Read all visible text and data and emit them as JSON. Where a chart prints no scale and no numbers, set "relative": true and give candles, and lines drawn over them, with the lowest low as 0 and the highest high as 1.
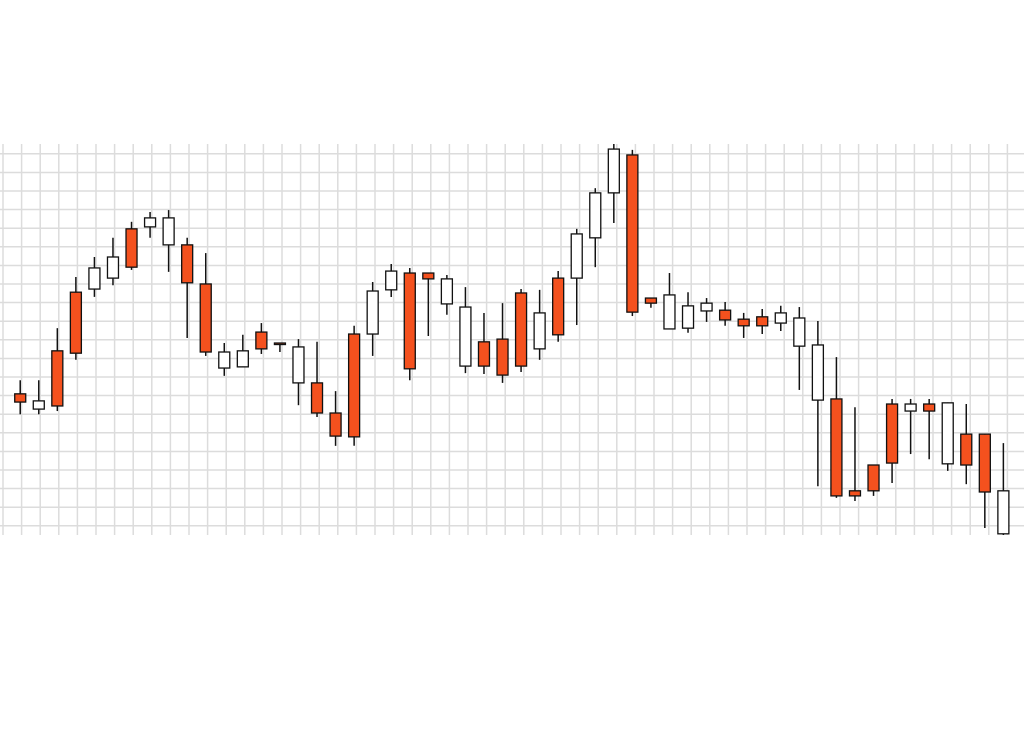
{
  "chart_data": {
    "type": "candlestick",
    "relative": true,
    "grid": true,
    "categories": [
      null,
      null,
      null,
      null,
      null,
      null,
      null,
      null,
      null,
      null,
      null,
      null,
      null,
      null,
      null,
      null,
      null,
      null,
      null,
      null,
      null,
      null,
      null,
      null,
      null,
      null,
      null,
      null,
      null,
      null,
      null,
      null,
      null,
      null,
      null,
      null,
      null,
      null,
      null,
      null,
      null,
      null,
      null,
      null,
      null,
      null,
      null,
      null,
      null,
      null,
      null,
      null,
      null,
      null
    ],
    "ohlc": [
      [
        0.361,
        0.396,
        0.309,
        0.34
      ],
      [
        0.322,
        0.396,
        0.309,
        0.343
      ],
      [
        0.471,
        0.529,
        0.317,
        0.33
      ],
      [
        0.621,
        0.66,
        0.448,
        0.465
      ],
      [
        0.629,
        0.711,
        0.609,
        0.683
      ],
      [
        0.657,
        0.76,
        0.639,
        0.711
      ],
      [
        0.783,
        0.801,
        0.678,
        0.685
      ],
      [
        0.788,
        0.826,
        0.76,
        0.811
      ],
      [
        0.742,
        0.831,
        0.673,
        0.811
      ],
      [
        0.742,
        0.76,
        0.504,
        0.645
      ],
      [
        0.642,
        0.721,
        0.458,
        0.468
      ],
      [
        0.427,
        0.491,
        0.407,
        0.468
      ],
      [
        0.43,
        0.512,
        0.43,
        0.471
      ],
      [
        0.519,
        0.542,
        0.463,
        0.476
      ],
      [
        0.491,
        0.491,
        0.468,
        0.488
      ],
      [
        0.389,
        0.501,
        0.332,
        0.481
      ],
      [
        0.389,
        0.494,
        0.302,
        0.312
      ],
      [
        0.312,
        0.368,
        0.228,
        0.253
      ],
      [
        0.514,
        0.535,
        0.228,
        0.251
      ],
      [
        0.514,
        0.647,
        0.458,
        0.624
      ],
      [
        0.627,
        0.693,
        0.609,
        0.675
      ],
      [
        0.67,
        0.683,
        0.396,
        0.425
      ],
      [
        0.67,
        0.67,
        0.509,
        0.655
      ],
      [
        0.591,
        0.665,
        0.563,
        0.655
      ],
      [
        0.432,
        0.634,
        0.414,
        0.583
      ],
      [
        0.494,
        0.568,
        0.412,
        0.432
      ],
      [
        0.501,
        0.593,
        0.389,
        0.409
      ],
      [
        0.619,
        0.629,
        0.417,
        0.432
      ],
      [
        0.476,
        0.627,
        0.448,
        0.568
      ],
      [
        0.657,
        0.675,
        0.494,
        0.512
      ],
      [
        0.657,
        0.783,
        0.537,
        0.77
      ],
      [
        0.76,
        0.887,
        0.685,
        0.875
      ],
      [
        0.875,
        1,
        0.798,
        0.987
      ],
      [
        0.972,
        0.985,
        0.56,
        0.57
      ],
      [
        0.606,
        0.606,
        0.581,
        0.593
      ],
      [
        0.527,
        0.67,
        0.527,
        0.614
      ],
      [
        0.529,
        0.621,
        0.517,
        0.586
      ],
      [
        0.573,
        0.606,
        0.545,
        0.593
      ],
      [
        0.575,
        0.596,
        0.535,
        0.55
      ],
      [
        0.552,
        0.568,
        0.504,
        0.535
      ],
      [
        0.558,
        0.578,
        0.514,
        0.535
      ],
      [
        0.542,
        0.586,
        0.522,
        0.568
      ],
      [
        0.483,
        0.583,
        0.371,
        0.555
      ],
      [
        0.345,
        0.547,
        0.125,
        0.486
      ],
      [
        0.348,
        0.455,
        0.095,
        0.1
      ],
      [
        0.113,
        0.327,
        0.087,
        0.1
      ],
      [
        0.179,
        0.179,
        0.1,
        0.113
      ],
      [
        0.335,
        0.348,
        0.133,
        0.184
      ],
      [
        0.317,
        0.348,
        0.207,
        0.335
      ],
      [
        0.335,
        0.348,
        0.194,
        0.317
      ],
      [
        0.182,
        0.338,
        0.164,
        0.338
      ],
      [
        0.258,
        0.335,
        0.13,
        0.179
      ],
      [
        0.258,
        0.258,
        0.018,
        0.11
      ],
      [
        0.003,
        0.235,
        0,
        0.113
      ]
    ],
    "colors": [
      "#f4511e",
      "#ffffff",
      "#f4511e",
      "#f4511e",
      "#ffffff",
      "#ffffff",
      "#f4511e",
      "#ffffff",
      "#ffffff",
      "#f4511e",
      "#f4511e",
      "#ffffff",
      "#ffffff",
      "#f4511e",
      "#f4511e",
      "#ffffff",
      "#f4511e",
      "#f4511e",
      "#f4511e",
      "#ffffff",
      "#ffffff",
      "#f4511e",
      "#f4511e",
      "#ffffff",
      "#ffffff",
      "#f4511e",
      "#f4511e",
      "#f4511e",
      "#ffffff",
      "#f4511e",
      "#ffffff",
      "#ffffff",
      "#ffffff",
      "#f4511e",
      "#f4511e",
      "#ffffff",
      "#ffffff",
      "#ffffff",
      "#f4511e",
      "#f4511e",
      "#f4511e",
      "#ffffff",
      "#ffffff",
      "#ffffff",
      "#f4511e",
      "#f4511e",
      "#f4511e",
      "#f4511e",
      "#ffffff",
      "#f4511e",
      "#ffffff",
      "#f4511e",
      "#f4511e",
      "#ffffff"
    ]
  }
}
